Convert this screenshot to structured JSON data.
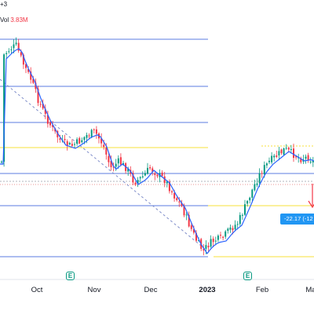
{
  "header": {
    "symbol_fragment": "+3",
    "volume_label": "Vol",
    "volume_value": "3.83M"
  },
  "time_axis": {
    "months": [
      "Oct",
      "Nov",
      "Dec",
      "2023",
      "Feb",
      "Ma"
    ]
  },
  "events": {
    "earnings_icon": "earnings-flag-icon",
    "earnings_letter": "E"
  },
  "measure_tool": {
    "label": "-22.17 (-12"
  },
  "colors": {
    "up_candle": "#089981",
    "down_candle": "#f23645",
    "moving_average": "#2962ff",
    "fib_line": "#5b7be0",
    "support_resistance": "#f7e03b",
    "measure_box": "#2196f3"
  },
  "chart_data": {
    "type": "candlestick",
    "overlays": [
      "moving-average",
      "horizontal-levels",
      "trendline",
      "price-range-measure"
    ],
    "measure": "-22.17",
    "x_ticks": [
      "Oct",
      "Nov",
      "Dec",
      "2023",
      "Feb",
      "Ma"
    ]
  }
}
